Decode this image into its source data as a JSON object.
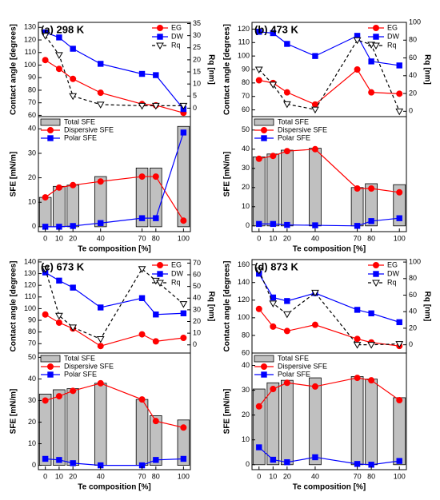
{
  "chart_data": [
    {
      "type": "line",
      "title": "(a) 298 K",
      "ylabel": "Contact angle [degrees]",
      "y2label": "Rq [nm]",
      "x": [
        0,
        10,
        20,
        40,
        70,
        80,
        100
      ],
      "xlim": [
        -5,
        105
      ],
      "ylim": [
        59,
        134
      ],
      "yticks": [
        60,
        70,
        80,
        90,
        100,
        110,
        120,
        130
      ],
      "y2lim": [
        -3.5,
        35.5
      ],
      "y2ticks": [
        0,
        5,
        10,
        15,
        20,
        25,
        30,
        35
      ],
      "series": [
        {
          "name": "EG",
          "color": "#ff0000",
          "marker": "circle",
          "values": [
            104,
            97,
            89,
            78,
            69,
            68,
            62
          ]
        },
        {
          "name": "DW",
          "color": "#0000ff",
          "marker": "square",
          "values": [
            126,
            122,
            113,
            101,
            93,
            92,
            65
          ]
        },
        {
          "name": "Rq",
          "color": "#000000",
          "marker": "triangle-down",
          "dash": true,
          "axis": "y2",
          "values": [
            30,
            22,
            5,
            1.5,
            1,
            1,
            1
          ]
        }
      ]
    },
    {
      "type": "bar",
      "ylabel": "SFE [mN/m]",
      "xlabel": "Te composition [%]",
      "x": [
        0,
        10,
        20,
        40,
        70,
        80,
        100
      ],
      "xlim": [
        -5,
        105
      ],
      "xticks": [
        0,
        10,
        20,
        40,
        70,
        80,
        100
      ],
      "ylim": [
        -2,
        45
      ],
      "yticks": [
        0,
        10,
        20,
        30,
        40
      ],
      "series": [
        {
          "name": "Total SFE",
          "type": "bar",
          "color": "#c0c0c0",
          "values": [
            12,
            16.5,
            17,
            20.5,
            24,
            24,
            41
          ]
        },
        {
          "name": "Dispersive SFE",
          "type": "line",
          "color": "#ff0000",
          "marker": "circle",
          "values": [
            12,
            16,
            17,
            18.5,
            20.5,
            20.5,
            2.5
          ]
        },
        {
          "name": "Polar SFE",
          "type": "line",
          "color": "#0000ff",
          "marker": "square",
          "values": [
            0,
            0,
            0.3,
            1.5,
            3.5,
            3.5,
            38.5
          ]
        }
      ]
    },
    {
      "type": "line",
      "title": "(b) 473 K",
      "ylabel": "Contact angle [degrees]",
      "y2label": "Rq [nm]",
      "x": [
        0,
        10,
        20,
        40,
        70,
        80,
        100
      ],
      "xlim": [
        -5,
        105
      ],
      "ylim": [
        55,
        125
      ],
      "yticks": [
        60,
        70,
        80,
        90,
        100,
        110,
        120
      ],
      "y2lim": [
        -6,
        100
      ],
      "y2ticks": [
        0,
        20,
        40,
        60,
        80,
        100
      ],
      "series": [
        {
          "name": "EG",
          "color": "#ff0000",
          "marker": "circle",
          "values": [
            82,
            80,
            73,
            64,
            90,
            73,
            72
          ]
        },
        {
          "name": "DW",
          "color": "#0000ff",
          "marker": "square",
          "values": [
            118,
            117,
            109,
            100,
            115,
            96,
            93
          ]
        },
        {
          "name": "Rq",
          "color": "#000000",
          "marker": "triangle-down",
          "dash": true,
          "axis": "y2",
          "values": [
            47,
            30,
            8,
            2,
            80,
            75,
            0
          ]
        }
      ]
    },
    {
      "type": "bar",
      "ylabel": "SFE [mN/m]",
      "xlabel": "Te composition [%]",
      "x": [
        0,
        10,
        20,
        40,
        70,
        80,
        100
      ],
      "xlim": [
        -5,
        105
      ],
      "xticks": [
        0,
        10,
        20,
        40,
        70,
        80,
        100
      ],
      "ylim": [
        -3,
        57
      ],
      "yticks": [
        0,
        10,
        20,
        30,
        40,
        50
      ],
      "series": [
        {
          "name": "Total SFE",
          "type": "bar",
          "color": "#c0c0c0",
          "values": [
            36,
            37.5,
            39.5,
            40.5,
            20,
            22,
            21.5
          ]
        },
        {
          "name": "Dispersive SFE",
          "type": "line",
          "color": "#ff0000",
          "marker": "circle",
          "values": [
            35,
            36.5,
            39,
            40,
            19.5,
            19.5,
            17.5
          ]
        },
        {
          "name": "Polar SFE",
          "type": "line",
          "color": "#0000ff",
          "marker": "square",
          "values": [
            1,
            1,
            0.5,
            0.3,
            0,
            2.5,
            4
          ]
        }
      ]
    },
    {
      "type": "line",
      "title": "(c) 673 K",
      "ylabel": "Contact angle [degrees]",
      "y2label": "Rq [nm]",
      "x": [
        0,
        10,
        20,
        40,
        70,
        80,
        100
      ],
      "xlim": [
        -5,
        105
      ],
      "ylim": [
        62,
        142
      ],
      "yticks": [
        70,
        80,
        90,
        100,
        110,
        120,
        130,
        140
      ],
      "y2lim": [
        -7,
        73
      ],
      "y2ticks": [
        0,
        10,
        20,
        30,
        40,
        50,
        60,
        70
      ],
      "series": [
        {
          "name": "EG",
          "color": "#ff0000",
          "marker": "circle",
          "values": [
            95,
            88,
            83,
            68,
            78,
            72,
            75
          ]
        },
        {
          "name": "DW",
          "color": "#0000ff",
          "marker": "square",
          "values": [
            131,
            124,
            118,
            101,
            109,
            95,
            96
          ]
        },
        {
          "name": "Rq",
          "color": "#000000",
          "marker": "triangle-down",
          "dash": true,
          "axis": "y2",
          "values": [
            65,
            25,
            15,
            5,
            65,
            55,
            35
          ]
        }
      ]
    },
    {
      "type": "bar",
      "ylabel": "SFE [mN/m]",
      "xlabel": "Te composition [%]",
      "x": [
        0,
        10,
        20,
        40,
        70,
        80,
        100
      ],
      "xlim": [
        -5,
        105
      ],
      "xticks": [
        0,
        10,
        20,
        40,
        70,
        80,
        100
      ],
      "ylim": [
        -2,
        52
      ],
      "yticks": [
        0,
        10,
        20,
        30,
        40,
        50
      ],
      "series": [
        {
          "name": "Total SFE",
          "type": "bar",
          "color": "#c0c0c0",
          "values": [
            33,
            35,
            35.5,
            38,
            30.5,
            23,
            21
          ]
        },
        {
          "name": "Dispersive SFE",
          "type": "line",
          "color": "#ff0000",
          "marker": "circle",
          "values": [
            30,
            32,
            34.5,
            38,
            30.5,
            20.5,
            17.5
          ]
        },
        {
          "name": "Polar SFE",
          "type": "line",
          "color": "#0000ff",
          "marker": "square",
          "values": [
            3,
            2.5,
            1,
            0,
            0,
            2.5,
            3
          ]
        }
      ]
    },
    {
      "type": "line",
      "title": "(d) 873 K",
      "ylabel": "Contact angle [degrees]",
      "y2label": "Rq [nm]",
      "x": [
        0,
        10,
        20,
        40,
        70,
        80,
        100
      ],
      "xlim": [
        -5,
        105
      ],
      "ylim": [
        60,
        166
      ],
      "yticks": [
        60,
        80,
        100,
        120,
        140,
        160
      ],
      "y2lim": [
        -10,
        103
      ],
      "y2ticks": [
        0,
        20,
        40,
        60,
        80,
        100
      ],
      "series": [
        {
          "name": "EG",
          "color": "#ff0000",
          "marker": "circle",
          "values": [
            110,
            90,
            85,
            92,
            76,
            72,
            68
          ]
        },
        {
          "name": "DW",
          "color": "#0000ff",
          "marker": "square",
          "values": [
            150,
            123,
            119,
            128,
            109,
            105,
            95
          ]
        },
        {
          "name": "Rq",
          "color": "#000000",
          "marker": "triangle-down",
          "dash": true,
          "axis": "y2",
          "values": [
            90,
            50,
            37,
            63,
            0,
            0,
            1
          ]
        }
      ]
    },
    {
      "type": "bar",
      "ylabel": "SFE [mN/m]",
      "xlabel": "Te composition [%]",
      "x": [
        0,
        10,
        20,
        40,
        70,
        80,
        100
      ],
      "xlim": [
        -5,
        105
      ],
      "xticks": [
        0,
        10,
        20,
        40,
        70,
        80,
        100
      ],
      "ylim": [
        -2,
        45
      ],
      "yticks": [
        0,
        10,
        20,
        30,
        40
      ],
      "series": [
        {
          "name": "Total SFE",
          "type": "bar",
          "color": "#c0c0c0",
          "values": [
            30.5,
            33,
            34,
            35,
            35.5,
            34.5,
            27
          ]
        },
        {
          "name": "Dispersive SFE",
          "type": "line",
          "color": "#ff0000",
          "marker": "circle",
          "values": [
            23.5,
            30.5,
            33,
            31.5,
            35,
            34,
            26
          ]
        },
        {
          "name": "Polar SFE",
          "type": "line",
          "color": "#0000ff",
          "marker": "square",
          "values": [
            7,
            2,
            1,
            3,
            0.3,
            0,
            1.5
          ]
        }
      ]
    }
  ]
}
